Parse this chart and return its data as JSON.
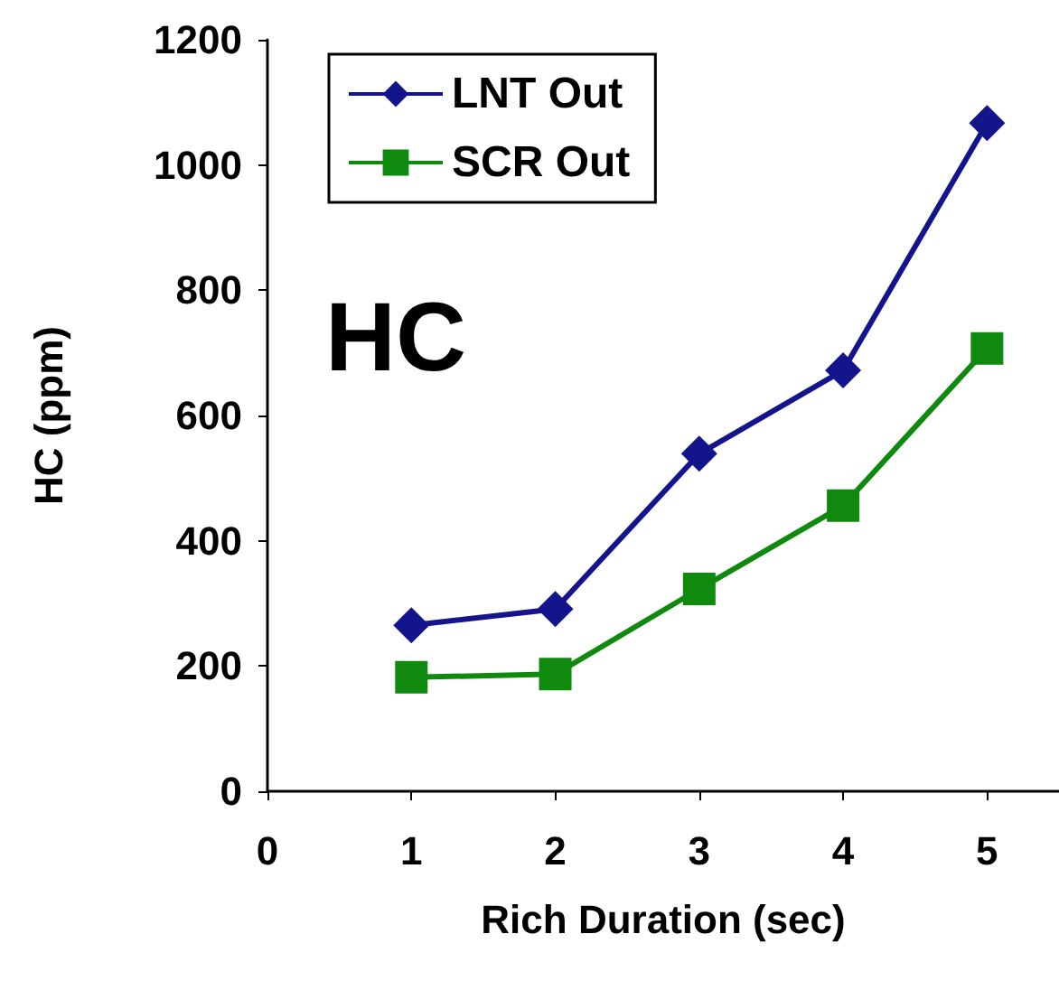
{
  "chart_data": {
    "type": "line",
    "xlabel": "Rich Duration (sec)",
    "ylabel": "HC (ppm)",
    "annotations": [
      "HC"
    ],
    "x": [
      1,
      2,
      3,
      4,
      5
    ],
    "series": [
      {
        "name": "LNT Out",
        "color": "#14148c",
        "marker": "diamond",
        "values": [
          265,
          291,
          539,
          672,
          1067
        ]
      },
      {
        "name": "SCR Out",
        "color": "#0f8a0f",
        "marker": "square",
        "values": [
          182,
          187,
          323,
          456,
          707
        ]
      }
    ],
    "xlim": [
      0,
      5.5
    ],
    "xticks": [
      0,
      1,
      2,
      3,
      4,
      5
    ],
    "ylim": [
      0,
      1200
    ],
    "yticks": [
      0,
      200,
      400,
      600,
      800,
      1000,
      1200
    ],
    "grid": false,
    "legend": "top left",
    "line_style": "solid"
  }
}
